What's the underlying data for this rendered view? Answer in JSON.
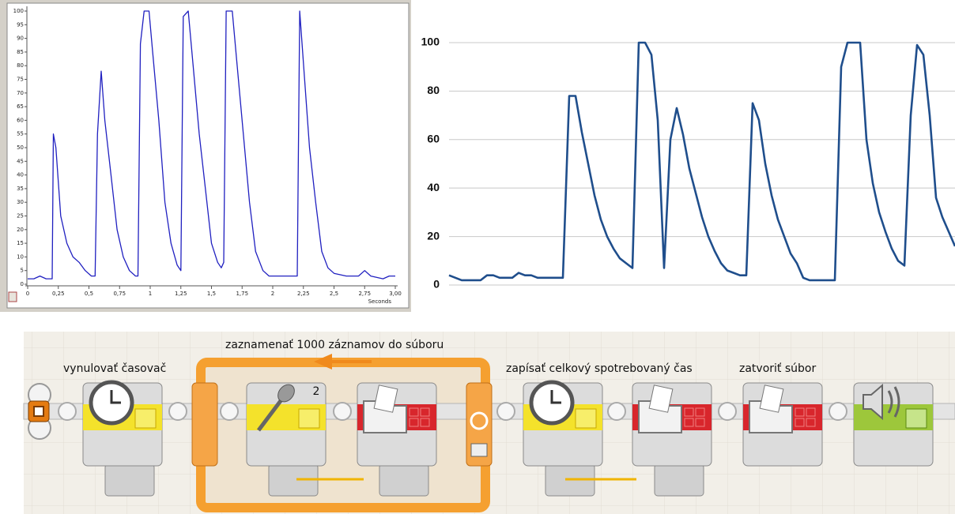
{
  "chart_data": [
    {
      "type": "line",
      "xlabel": "Seconds",
      "color": "#2020c0",
      "grid": false,
      "xlim": [
        0,
        3
      ],
      "ylim": [
        0,
        100
      ],
      "xticks": [
        0,
        {
          "value": 0.25,
          "label": "0,25"
        },
        {
          "value": 0.5,
          "label": "0,5"
        },
        {
          "value": 0.75,
          "label": "0,75"
        },
        1,
        {
          "value": 1.25,
          "label": "1,25"
        },
        {
          "value": 1.5,
          "label": "1,5"
        },
        {
          "value": 1.75,
          "label": "1,75"
        },
        2,
        {
          "value": 2.25,
          "label": "2,25"
        },
        {
          "value": 2.5,
          "label": "2,5"
        },
        {
          "value": 2.75,
          "label": "2,75"
        },
        {
          "value": 3,
          "label": "3,00"
        }
      ],
      "yticks": [
        0,
        5,
        10,
        15,
        20,
        25,
        30,
        35,
        40,
        45,
        50,
        55,
        60,
        65,
        70,
        75,
        80,
        85,
        90,
        95,
        100
      ],
      "x": [
        0,
        0.05,
        0.1,
        0.15,
        0.2,
        0.21,
        0.23,
        0.27,
        0.32,
        0.37,
        0.42,
        0.47,
        0.52,
        0.55,
        0.57,
        0.6,
        0.63,
        0.68,
        0.73,
        0.78,
        0.83,
        0.88,
        0.9,
        0.92,
        0.95,
        0.99,
        1.02,
        1.07,
        1.12,
        1.17,
        1.22,
        1.25,
        1.27,
        1.31,
        1.35,
        1.4,
        1.45,
        1.5,
        1.55,
        1.58,
        1.6,
        1.62,
        1.67,
        1.71,
        1.76,
        1.81,
        1.86,
        1.92,
        1.97,
        2.0,
        2.1,
        2.2,
        2.22,
        2.26,
        2.3,
        2.35,
        2.4,
        2.45,
        2.5,
        2.6,
        2.7,
        2.75,
        2.8,
        2.9,
        2.95,
        3.0
      ],
      "values": [
        2,
        2,
        3,
        2,
        2,
        55,
        50,
        25,
        15,
        10,
        8,
        5,
        3,
        3,
        55,
        78,
        60,
        40,
        20,
        10,
        5,
        3,
        3,
        88,
        100,
        100,
        85,
        60,
        30,
        15,
        7,
        5,
        98,
        100,
        80,
        55,
        35,
        15,
        8,
        6,
        8,
        100,
        100,
        80,
        55,
        30,
        12,
        5,
        3,
        3,
        3,
        3,
        100,
        75,
        50,
        30,
        12,
        6,
        4,
        3,
        3,
        5,
        3,
        2,
        3,
        3
      ]
    },
    {
      "type": "line",
      "color": "#1f4e8c",
      "grid": true,
      "ylim": [
        0,
        105
      ],
      "yticks": [
        0,
        20,
        40,
        60,
        80,
        100
      ],
      "values": [
        4,
        3,
        2,
        2,
        2,
        2,
        4,
        4,
        3,
        3,
        3,
        5,
        4,
        4,
        3,
        3,
        3,
        3,
        3,
        78,
        78,
        63,
        50,
        37,
        27,
        20,
        15,
        11,
        9,
        7,
        100,
        100,
        95,
        68,
        7,
        60,
        73,
        62,
        48,
        38,
        28,
        20,
        14,
        9,
        6,
        5,
        4,
        4,
        75,
        68,
        50,
        37,
        27,
        20,
        13,
        9,
        3,
        2,
        2,
        2,
        2,
        2,
        90,
        100,
        100,
        100,
        60,
        42,
        30,
        22,
        15,
        10,
        8,
        70,
        99,
        95,
        70,
        36,
        28,
        22,
        16
      ]
    }
  ],
  "program": {
    "labels": [
      "vynulovať časovač",
      "zaznamenať 1000 záznamov do súboru",
      "zapísať celkový spotrebovaný čas",
      "zatvoriť súbor"
    ],
    "mic_port": 2
  }
}
